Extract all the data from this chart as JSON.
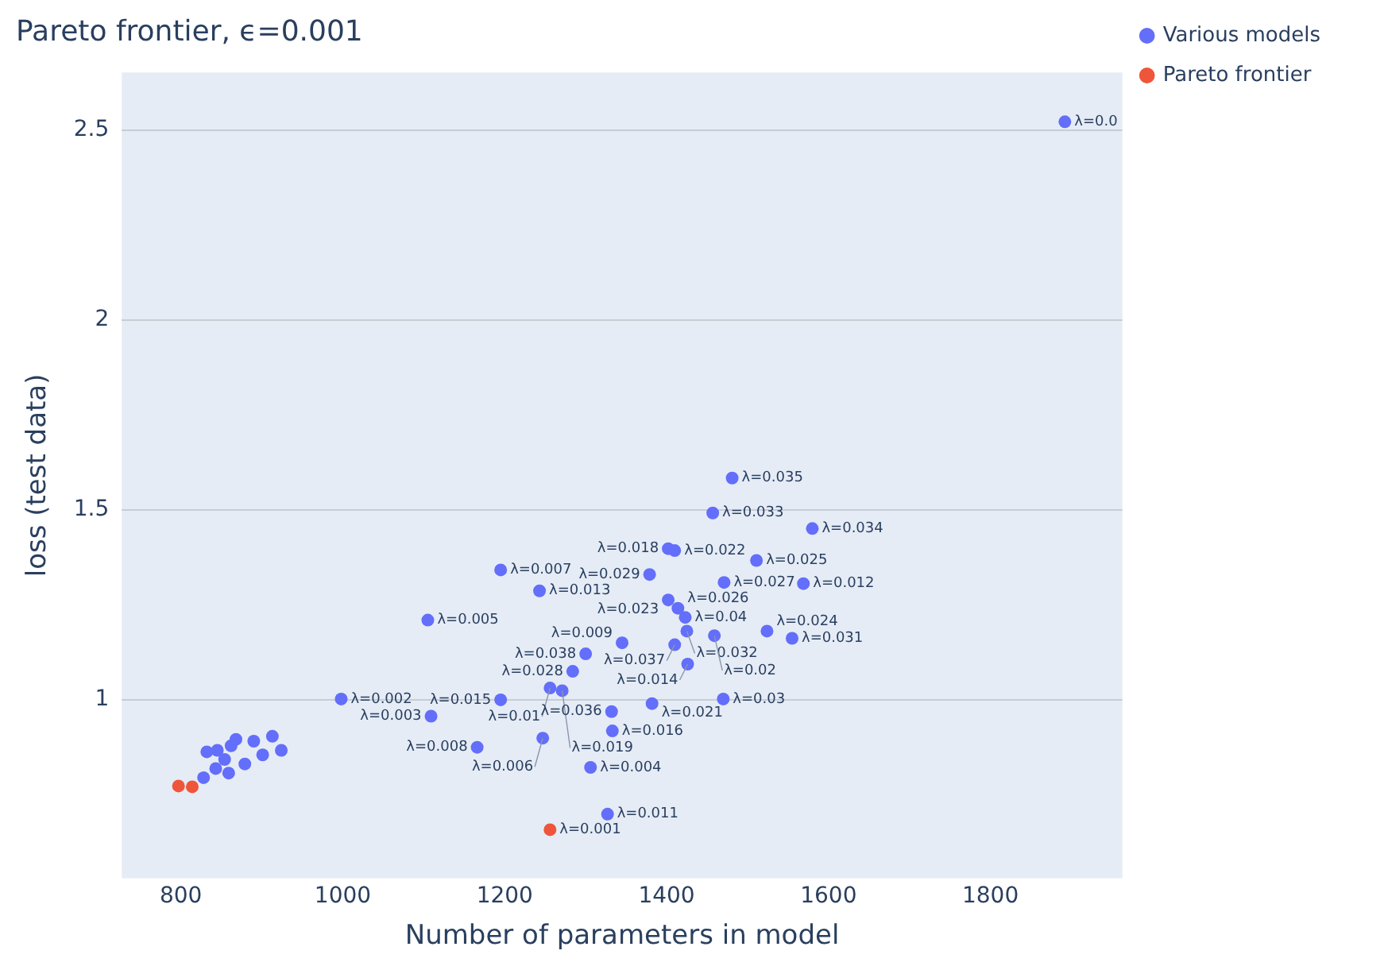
{
  "chart_data": {
    "type": "scatter",
    "title": "Pareto frontier, ϵ=0.001",
    "xlabel": "Number of parameters in model",
    "ylabel": "loss (test data)",
    "xlim": [
      727,
      1963
    ],
    "ylim": [
      0.53,
      2.652
    ],
    "xticks": [
      800,
      1000,
      1200,
      1400,
      1600,
      1800
    ],
    "yticks": [
      1,
      1.5,
      2,
      2.5
    ],
    "grid": "y",
    "legend": "top right",
    "marker": "circle",
    "series": [
      {
        "name": "Various models",
        "color": "#636efa",
        "x": [
          1892,
          1481,
          1457,
          1580,
          1402,
          1410,
          1511,
          1379,
          1471,
          1569,
          1195,
          1243,
          1105,
          1402,
          1414,
          1423,
          1425,
          1459,
          1524,
          1555,
          1345,
          1410,
          1300,
          1426,
          1284,
          1256,
          1271,
          998,
          1195,
          1382,
          1470,
          1109,
          1332,
          1333,
          1247,
          1166,
          1306,
          1327,
          832,
          845,
          862,
          868,
          843,
          854,
          828,
          859,
          890,
          913,
          879,
          901,
          924
        ],
        "values": [
          2.522,
          1.584,
          1.492,
          1.451,
          1.398,
          1.393,
          1.367,
          1.33,
          1.309,
          1.306,
          1.342,
          1.287,
          1.21,
          1.263,
          1.241,
          1.217,
          1.181,
          1.169,
          1.181,
          1.162,
          1.15,
          1.145,
          1.121,
          1.094,
          1.075,
          1.031,
          1.024,
          1.002,
          1.0,
          0.99,
          1.002,
          0.957,
          0.969,
          0.918,
          0.899,
          0.875,
          0.822,
          0.699,
          0.863,
          0.867,
          0.879,
          0.896,
          0.819,
          0.843,
          0.795,
          0.807,
          0.891,
          0.904,
          0.831,
          0.855,
          0.867
        ]
      },
      {
        "name": "Pareto frontier",
        "color": "#ef553b",
        "x": [
          797,
          814,
          1256
        ],
        "values": [
          0.773,
          0.771,
          0.658
        ]
      }
    ],
    "annotations": [
      {
        "text": "λ=0.0",
        "x": 1892,
        "y": 2.522
      },
      {
        "text": "λ=0.035",
        "x": 1481,
        "y": 1.584
      },
      {
        "text": "λ=0.033",
        "x": 1457,
        "y": 1.492
      },
      {
        "text": "λ=0.034",
        "x": 1580,
        "y": 1.451
      },
      {
        "text": "λ=0.018",
        "x": 1402,
        "y": 1.398
      },
      {
        "text": "λ=0.022",
        "x": 1410,
        "y": 1.393
      },
      {
        "text": "λ=0.025",
        "x": 1511,
        "y": 1.367
      },
      {
        "text": "λ=0.029",
        "x": 1379,
        "y": 1.33
      },
      {
        "text": "λ=0.027",
        "x": 1471,
        "y": 1.309
      },
      {
        "text": "λ=0.012",
        "x": 1569,
        "y": 1.306
      },
      {
        "text": "λ=0.007",
        "x": 1195,
        "y": 1.342
      },
      {
        "text": "λ=0.013",
        "x": 1243,
        "y": 1.287
      },
      {
        "text": "λ=0.005",
        "x": 1105,
        "y": 1.21
      },
      {
        "text": "λ=0.023",
        "x": 1402,
        "y": 1.263
      },
      {
        "text": "λ=0.026",
        "x": 1414,
        "y": 1.241
      },
      {
        "text": "λ=0.04",
        "x": 1423,
        "y": 1.217
      },
      {
        "text": "λ=0.032",
        "x": 1425,
        "y": 1.181
      },
      {
        "text": "λ=0.02",
        "x": 1459,
        "y": 1.169
      },
      {
        "text": "λ=0.024",
        "x": 1524,
        "y": 1.181
      },
      {
        "text": "λ=0.031",
        "x": 1555,
        "y": 1.162
      },
      {
        "text": "λ=0.009",
        "x": 1345,
        "y": 1.15
      },
      {
        "text": "λ=0.037",
        "x": 1410,
        "y": 1.145
      },
      {
        "text": "λ=0.038",
        "x": 1300,
        "y": 1.121
      },
      {
        "text": "λ=0.014",
        "x": 1426,
        "y": 1.094
      },
      {
        "text": "λ=0.028",
        "x": 1284,
        "y": 1.075
      },
      {
        "text": "λ=0.01",
        "x": 1256,
        "y": 1.031
      },
      {
        "text": "λ=0.019",
        "x": 1271,
        "y": 1.024
      },
      {
        "text": "λ=0.002",
        "x": 998,
        "y": 1.002
      },
      {
        "text": "λ=0.015",
        "x": 1195,
        "y": 1.0
      },
      {
        "text": "λ=0.021",
        "x": 1382,
        "y": 0.99
      },
      {
        "text": "λ=0.03",
        "x": 1470,
        "y": 1.002
      },
      {
        "text": "λ=0.003",
        "x": 1109,
        "y": 0.957
      },
      {
        "text": "λ=0.036",
        "x": 1332,
        "y": 0.969
      },
      {
        "text": "λ=0.016",
        "x": 1333,
        "y": 0.918
      },
      {
        "text": "λ=0.006",
        "x": 1247,
        "y": 0.899
      },
      {
        "text": "λ=0.008",
        "x": 1166,
        "y": 0.875
      },
      {
        "text": "λ=0.004",
        "x": 1306,
        "y": 0.822
      },
      {
        "text": "λ=0.011",
        "x": 1327,
        "y": 0.699
      },
      {
        "text": "λ=0.001",
        "x": 1256,
        "y": 0.658
      }
    ]
  }
}
